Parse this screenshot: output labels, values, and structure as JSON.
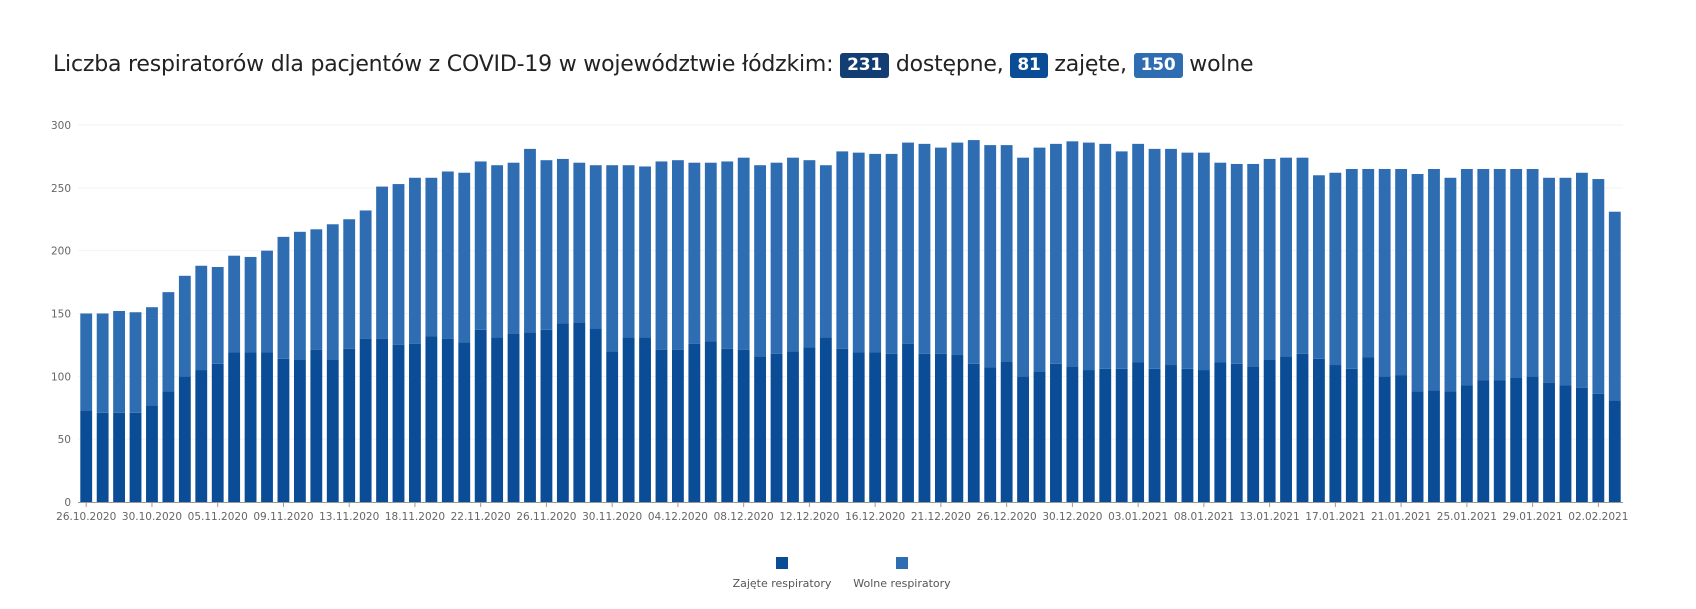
{
  "title": {
    "prefix": "Liczba respiratorów dla pacjentów z COVID-19 w województwie łódzkim:",
    "available_value": "231",
    "available_label": "dostępne,",
    "occupied_value": "81",
    "occupied_label": "zajęte,",
    "free_value": "150",
    "free_label": "wolne"
  },
  "colors": {
    "occupied": "#0b4c96",
    "free": "#2f6db2",
    "badge_available": "#123e73",
    "badge_occupied": "#0b4c96",
    "badge_free": "#2f6db2"
  },
  "chart_data": {
    "type": "bar",
    "stacked": true,
    "x_tick_labels": [
      "26.10.2020",
      "30.10.2020",
      "05.11.2020",
      "09.11.2020",
      "13.11.2020",
      "18.11.2020",
      "22.11.2020",
      "26.11.2020",
      "30.11.2020",
      "04.12.2020",
      "08.12.2020",
      "12.12.2020",
      "16.12.2020",
      "21.12.2020",
      "26.12.2020",
      "30.12.2020",
      "03.01.2021",
      "08.01.2021",
      "13.01.2021",
      "17.01.2021",
      "21.01.2021",
      "25.01.2021",
      "29.01.2021",
      "02.02.2021"
    ],
    "x_tick_bar_index": [
      0,
      4,
      8,
      12,
      16,
      20,
      24,
      28,
      32,
      36,
      40,
      44,
      48,
      52,
      56,
      60,
      64,
      68,
      72,
      76,
      80,
      84,
      88,
      92
    ],
    "ylim": [
      0,
      300
    ],
    "yticks": [
      0,
      50,
      100,
      150,
      200,
      250,
      300
    ],
    "grid": true,
    "legend_position": "bottom",
    "series": [
      {
        "name": "Zajęte respiratory",
        "values": [
          73,
          71,
          71,
          71,
          77,
          88,
          100,
          105,
          110,
          119,
          119,
          119,
          114,
          113,
          121,
          113,
          122,
          130,
          130,
          125,
          126,
          132,
          130,
          127,
          137,
          131,
          134,
          135,
          137,
          142,
          143,
          138,
          120,
          131,
          131,
          121,
          121,
          126,
          128,
          122,
          121,
          116,
          118,
          120,
          123,
          131,
          122,
          119,
          119,
          118,
          126,
          118,
          118,
          117,
          110,
          107,
          112,
          100,
          104,
          110,
          108,
          105,
          106,
          106,
          111,
          106,
          109,
          106,
          105,
          111,
          110,
          108,
          113,
          116,
          118,
          114,
          109,
          106,
          115,
          100,
          101,
          88,
          89,
          88,
          93,
          97,
          97,
          99,
          100,
          95,
          93,
          91,
          86,
          81
        ]
      },
      {
        "name": "Wolne respiratory",
        "values": [
          77,
          79,
          81,
          80,
          78,
          79,
          80,
          83,
          77,
          77,
          76,
          81,
          97,
          102,
          96,
          108,
          103,
          102,
          121,
          128,
          132,
          126,
          133,
          135,
          134,
          137,
          136,
          146,
          135,
          131,
          127,
          130,
          148,
          137,
          136,
          150,
          151,
          144,
          142,
          149,
          153,
          152,
          152,
          154,
          149,
          137,
          157,
          159,
          158,
          159,
          160,
          167,
          164,
          169,
          178,
          177,
          172,
          174,
          178,
          175,
          179,
          181,
          179,
          173,
          174,
          175,
          172,
          172,
          173,
          159,
          159,
          161,
          160,
          158,
          156,
          146,
          153,
          159,
          150,
          165,
          164,
          173,
          176,
          170,
          172,
          168,
          168,
          166,
          165,
          163,
          165,
          171,
          171,
          150
        ]
      }
    ]
  }
}
